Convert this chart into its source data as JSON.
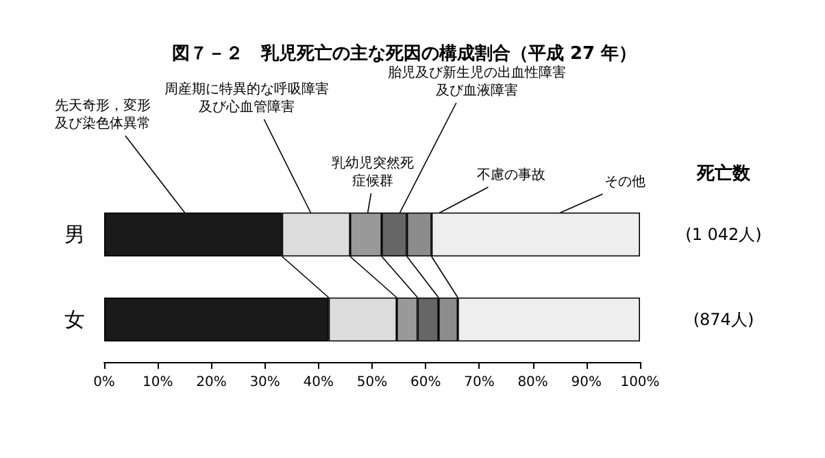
{
  "chart_data": {
    "type": "bar",
    "orientation": "horizontal",
    "stacked": true,
    "title": "図７－２　乳児死亡の主な死因の構成割合（平成 27 年）",
    "categories": [
      "男",
      "女"
    ],
    "series": [
      {
        "name": "先天奇形，変形及び染色体異常",
        "color": "#1a1a1a",
        "values": [
          33.2,
          41.9
        ]
      },
      {
        "name": "周産期に特異的な呼吸障害及び心血管障害",
        "color": "#dcdcdc",
        "values": [
          12.7,
          12.7
        ]
      },
      {
        "name": "乳幼児突然死症候群",
        "color": "#999999",
        "values": [
          5.9,
          3.9
        ]
      },
      {
        "name": "胎児及び新生児の出血性障害及び血液障害",
        "color": "#666666",
        "values": [
          4.7,
          3.9
        ]
      },
      {
        "name": "不慮の事故",
        "color": "#8c8c8c",
        "values": [
          4.6,
          3.6
        ]
      },
      {
        "name": "その他",
        "color": "#eeeeee",
        "values": [
          38.9,
          34.0
        ]
      }
    ],
    "xlim": [
      0,
      100
    ],
    "xticks": [
      {
        "value": 0,
        "label": "0%"
      },
      {
        "value": 10,
        "label": "10%"
      },
      {
        "value": 20,
        "label": "20%"
      },
      {
        "value": 30,
        "label": "30%"
      },
      {
        "value": 40,
        "label": "40%"
      },
      {
        "value": 50,
        "label": "50%"
      },
      {
        "value": 60,
        "label": "60%"
      },
      {
        "value": 70,
        "label": "70%"
      },
      {
        "value": 80,
        "label": "80%"
      },
      {
        "value": 90,
        "label": "90%"
      },
      {
        "value": 100,
        "label": "100%"
      }
    ],
    "annotations": [
      "死亡数",
      "(1 042人)",
      "(874人)"
    ],
    "grid": false,
    "legend": false
  }
}
